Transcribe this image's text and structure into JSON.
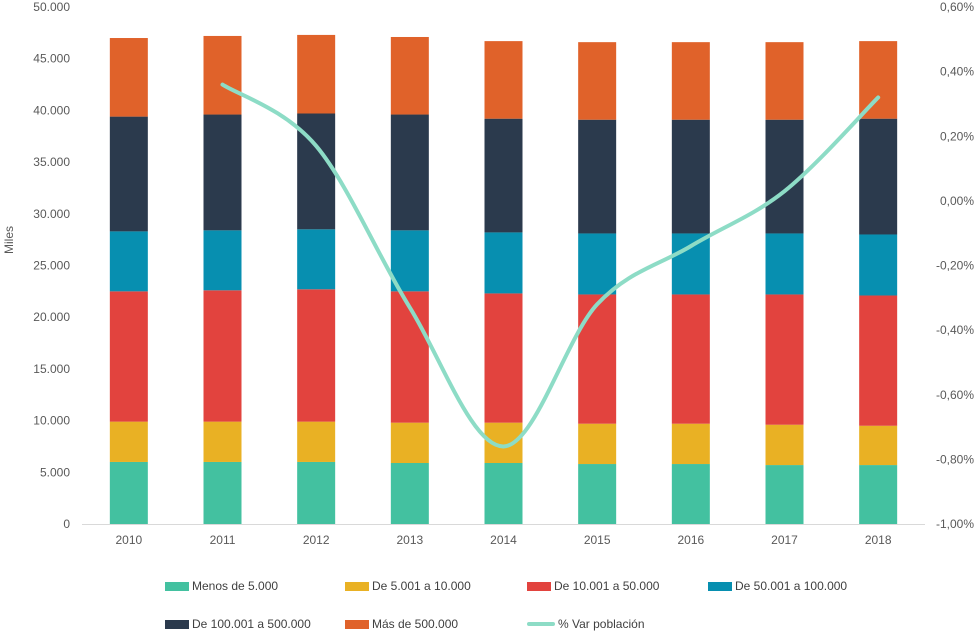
{
  "chart_data": {
    "type": "bar",
    "stacked": true,
    "categories": [
      "2010",
      "2011",
      "2012",
      "2013",
      "2014",
      "2015",
      "2016",
      "2017",
      "2018"
    ],
    "ylabel": "Miles",
    "ylim": [
      0,
      50000
    ],
    "y_ticks": [
      "0",
      "5.000",
      "10.000",
      "15.000",
      "20.000",
      "25.000",
      "30.000",
      "35.000",
      "40.000",
      "45.000",
      "50.000"
    ],
    "y2lim": [
      -1.0,
      0.6
    ],
    "y2_ticks": [
      "-1,00%",
      "-0,80%",
      "-0,60%",
      "-0,40%",
      "-0,20%",
      "0,00%",
      "0,20%",
      "0,40%",
      "0,60%"
    ],
    "legend_position": "bottom",
    "grid": false,
    "series": [
      {
        "name": "Menos de 5.000",
        "color": "#43c1a0",
        "values": [
          6000,
          6000,
          6000,
          5900,
          5900,
          5800,
          5800,
          5700,
          5700
        ]
      },
      {
        "name": "De 5.001 a 10.000",
        "color": "#e9b124",
        "values": [
          3900,
          3900,
          3900,
          3900,
          3900,
          3900,
          3900,
          3900,
          3800
        ]
      },
      {
        "name": "De 10.001 a 50.000",
        "color": "#e2433e",
        "values": [
          12600,
          12700,
          12800,
          12700,
          12500,
          12500,
          12500,
          12600,
          12600
        ]
      },
      {
        "name": "De 50.001 a 100.000",
        "color": "#078fb0",
        "values": [
          5800,
          5800,
          5800,
          5900,
          5900,
          5900,
          5900,
          5900,
          5900
        ]
      },
      {
        "name": "De 100.001 a 500.000",
        "color": "#2b3a4d",
        "values": [
          11100,
          11200,
          11200,
          11200,
          11000,
          11000,
          11000,
          11000,
          11200
        ]
      },
      {
        "name": "Más de 500.000",
        "color": "#e0622a",
        "values": [
          7600,
          7600,
          7600,
          7500,
          7500,
          7500,
          7500,
          7500,
          7500
        ]
      }
    ],
    "line_series": {
      "name": "% Var población",
      "color": "#8ddcc6",
      "axis": "secondary",
      "x": [
        "2011",
        "2012",
        "2013",
        "2014",
        "2015",
        "2016",
        "2017",
        "2018"
      ],
      "values": [
        0.36,
        0.17,
        -0.33,
        -0.76,
        -0.32,
        -0.14,
        0.03,
        0.32
      ]
    }
  }
}
